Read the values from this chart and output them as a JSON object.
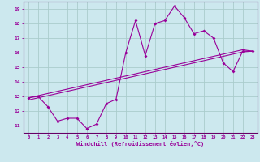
{
  "xlabel": "Windchill (Refroidissement éolien,°C)",
  "bg_color": "#cce8ee",
  "line_color": "#990099",
  "grid_color": "#aacccc",
  "x_data": [
    0,
    1,
    2,
    3,
    4,
    5,
    6,
    7,
    8,
    9,
    10,
    11,
    12,
    13,
    14,
    15,
    16,
    17,
    18,
    19,
    20,
    21,
    22,
    23
  ],
  "y_jagged": [
    12.9,
    13.0,
    12.3,
    11.3,
    11.5,
    11.5,
    10.8,
    11.1,
    12.5,
    12.8,
    16.0,
    18.2,
    15.8,
    18.0,
    18.2,
    19.2,
    18.4,
    17.3,
    17.5,
    17.0,
    15.3,
    14.7,
    16.1,
    16.1
  ],
  "y_trend1": [
    12.9,
    13.05,
    13.2,
    13.35,
    13.5,
    13.65,
    13.8,
    13.95,
    14.1,
    14.25,
    14.4,
    14.55,
    14.7,
    14.85,
    15.0,
    15.15,
    15.3,
    15.45,
    15.6,
    15.75,
    15.9,
    16.05,
    16.2,
    16.1
  ],
  "y_trend2": [
    12.75,
    12.9,
    13.05,
    13.2,
    13.35,
    13.5,
    13.65,
    13.8,
    13.95,
    14.1,
    14.25,
    14.4,
    14.55,
    14.7,
    14.85,
    15.0,
    15.15,
    15.3,
    15.45,
    15.6,
    15.75,
    15.9,
    16.05,
    16.1
  ],
  "ylim": [
    10.5,
    19.5
  ],
  "yticks": [
    11,
    12,
    13,
    14,
    15,
    16,
    17,
    18,
    19
  ],
  "xlim": [
    -0.5,
    23.5
  ],
  "xticks": [
    0,
    1,
    2,
    3,
    4,
    5,
    6,
    7,
    8,
    9,
    10,
    11,
    12,
    13,
    14,
    15,
    16,
    17,
    18,
    19,
    20,
    21,
    22,
    23
  ]
}
